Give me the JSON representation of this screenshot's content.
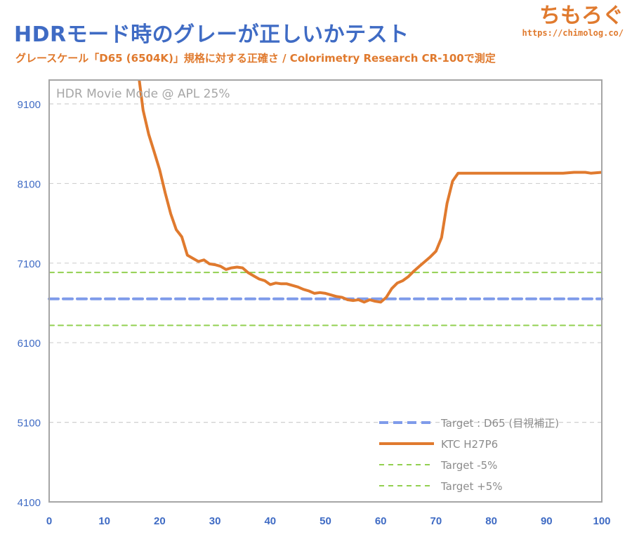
{
  "header": {
    "title": "HDRモード時のグレーが正しいかテスト",
    "subtitle": "グレースケール「D65 (6504K)」規格に対する正確さ  / Colorimetry Research CR-100で測定",
    "logo_text": "ちもろぐ",
    "logo_url": "https://chimolog.co/"
  },
  "colors": {
    "title": "#3f6bc4",
    "accent": "#e07a2e",
    "target_d65": "#7f9bea",
    "target_pct": "#92d050",
    "grid": "#d0d0d0",
    "frame": "#a6a6a6"
  },
  "chart_data": {
    "type": "line",
    "title": "HDRモード時のグレーが正しいかテスト",
    "annotation": "HDR Movie Mode @ APL 25%",
    "xlabel": "",
    "ylabel": "",
    "xlim": [
      0,
      100
    ],
    "ylim": [
      4100,
      9400
    ],
    "x_ticks": [
      0,
      10,
      20,
      30,
      40,
      50,
      60,
      70,
      80,
      90,
      100
    ],
    "y_ticks": [
      4100,
      5100,
      6100,
      7100,
      8100,
      9100
    ],
    "grid": true,
    "legend_position": "bottom-right",
    "series": [
      {
        "name": "Target : D65 (目視補正)",
        "style": "dashed-thick",
        "color": "#7f9bea",
        "x": [
          0,
          100
        ],
        "y": [
          6650,
          6650
        ]
      },
      {
        "name": "KTC H27P6",
        "style": "solid",
        "color": "#e07a2e",
        "x": [
          16.3,
          17,
          18,
          19,
          20,
          21,
          22,
          23,
          24,
          25,
          26,
          27,
          28,
          29,
          30,
          31,
          32,
          33,
          34,
          35,
          36,
          37,
          38,
          39,
          40,
          41,
          42,
          43,
          44,
          45,
          46,
          47,
          48,
          49,
          50,
          51,
          52,
          53,
          54,
          55,
          56,
          57,
          58,
          59,
          60,
          61,
          62,
          63,
          64,
          65,
          66,
          67,
          68,
          69,
          70,
          71,
          72,
          73,
          74,
          75,
          80,
          85,
          90,
          93,
          95,
          97,
          98,
          100
        ],
        "y": [
          9400,
          9020,
          8720,
          8500,
          8270,
          7980,
          7720,
          7520,
          7430,
          7200,
          7160,
          7120,
          7140,
          7090,
          7080,
          7060,
          7020,
          7040,
          7050,
          7040,
          6980,
          6940,
          6900,
          6880,
          6830,
          6850,
          6840,
          6840,
          6820,
          6800,
          6770,
          6750,
          6720,
          6730,
          6720,
          6700,
          6680,
          6670,
          6640,
          6630,
          6640,
          6610,
          6640,
          6620,
          6610,
          6670,
          6780,
          6850,
          6880,
          6930,
          7000,
          7060,
          7120,
          7180,
          7250,
          7420,
          7850,
          8130,
          8230,
          8230,
          8230,
          8230,
          8230,
          8230,
          8240,
          8240,
          8230,
          8240
        ]
      },
      {
        "name": "Target -5%",
        "style": "dashed-thin",
        "color": "#92d050",
        "x": [
          0,
          100
        ],
        "y": [
          6318,
          6318
        ]
      },
      {
        "name": "Target +5%",
        "style": "dashed-thin",
        "color": "#92d050",
        "x": [
          0,
          100
        ],
        "y": [
          6983,
          6983
        ]
      }
    ]
  }
}
